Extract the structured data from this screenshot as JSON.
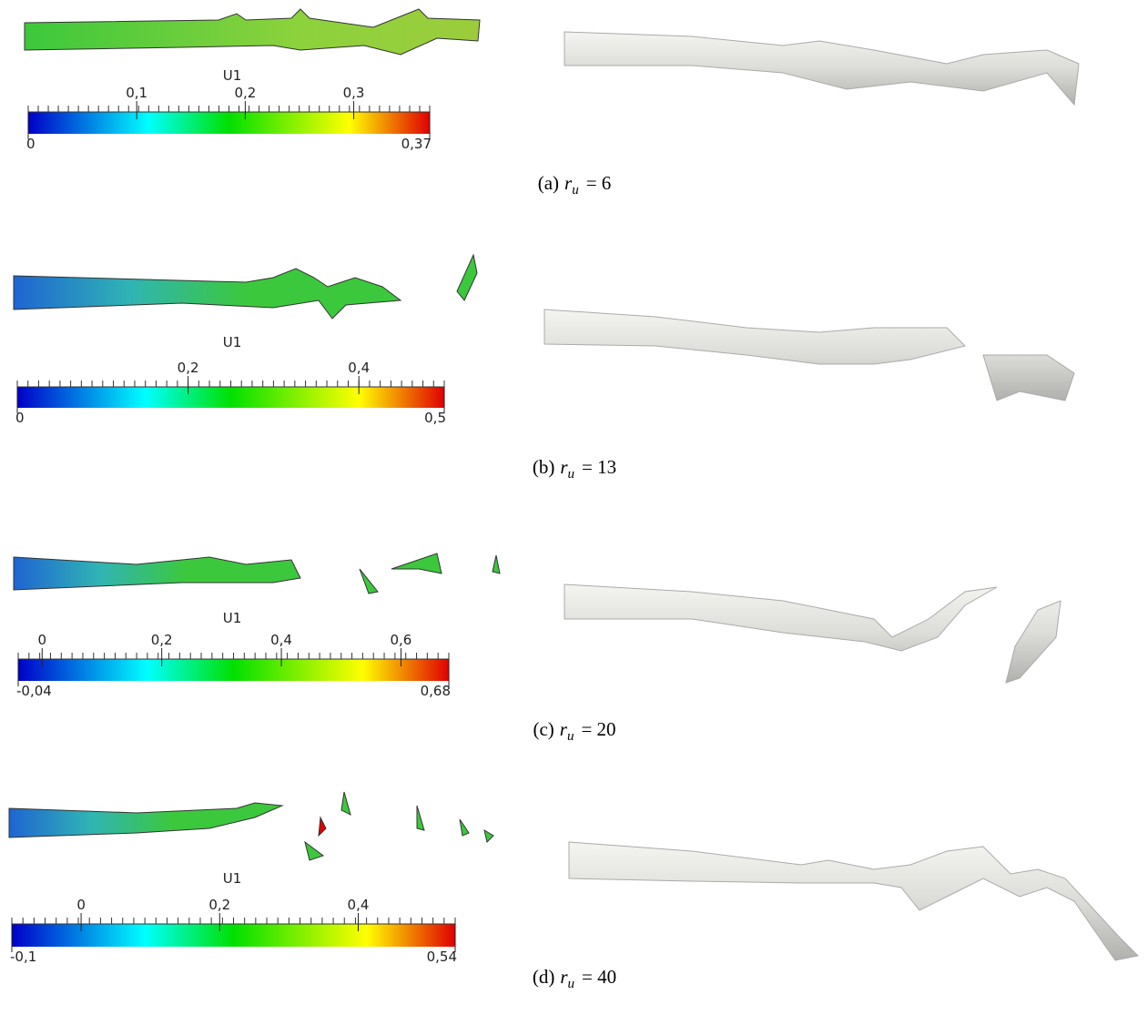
{
  "panels": [
    {
      "colorbar": {
        "title": "U1",
        "min": {
          "value": 0,
          "label": "0"
        },
        "max": {
          "value": 0.37,
          "label": "0,37"
        },
        "ticks": [
          {
            "value": 0.1,
            "label": "0,1"
          },
          {
            "value": 0.2,
            "label": "0,2"
          },
          {
            "value": 0.3,
            "label": "0,3"
          }
        ]
      },
      "caption": {
        "label": "(a)",
        "symbol": "r",
        "subscript": "u",
        "equals": "= 6"
      }
    },
    {
      "colorbar": {
        "title": "U1",
        "min": {
          "value": 0,
          "label": "0"
        },
        "max": {
          "value": 0.5,
          "label": "0,5"
        },
        "ticks": [
          {
            "value": 0.2,
            "label": "0,2"
          },
          {
            "value": 0.4,
            "label": "0,4"
          }
        ]
      },
      "caption": {
        "label": "(b)",
        "symbol": "r",
        "subscript": "u",
        "equals": "= 13"
      }
    },
    {
      "colorbar": {
        "title": "U1",
        "min": {
          "value": -0.04,
          "label": "-0,04"
        },
        "max": {
          "value": 0.68,
          "label": "0,68"
        },
        "ticks": [
          {
            "value": 0,
            "label": "0"
          },
          {
            "value": 0.2,
            "label": "0,2"
          },
          {
            "value": 0.4,
            "label": "0,4"
          },
          {
            "value": 0.6,
            "label": "0,6"
          }
        ]
      },
      "caption": {
        "label": "(c)",
        "symbol": "r",
        "subscript": "u",
        "equals": "= 20"
      }
    },
    {
      "colorbar": {
        "title": "U1",
        "min": {
          "value": -0.1,
          "label": "-0,1"
        },
        "max": {
          "value": 0.54,
          "label": "0,54"
        },
        "ticks": [
          {
            "value": 0,
            "label": "0"
          },
          {
            "value": 0.2,
            "label": "0,2"
          },
          {
            "value": 0.4,
            "label": "0,4"
          }
        ]
      },
      "caption": {
        "label": "(d)",
        "symbol": "r",
        "subscript": "u",
        "equals": "= 40"
      }
    }
  ]
}
